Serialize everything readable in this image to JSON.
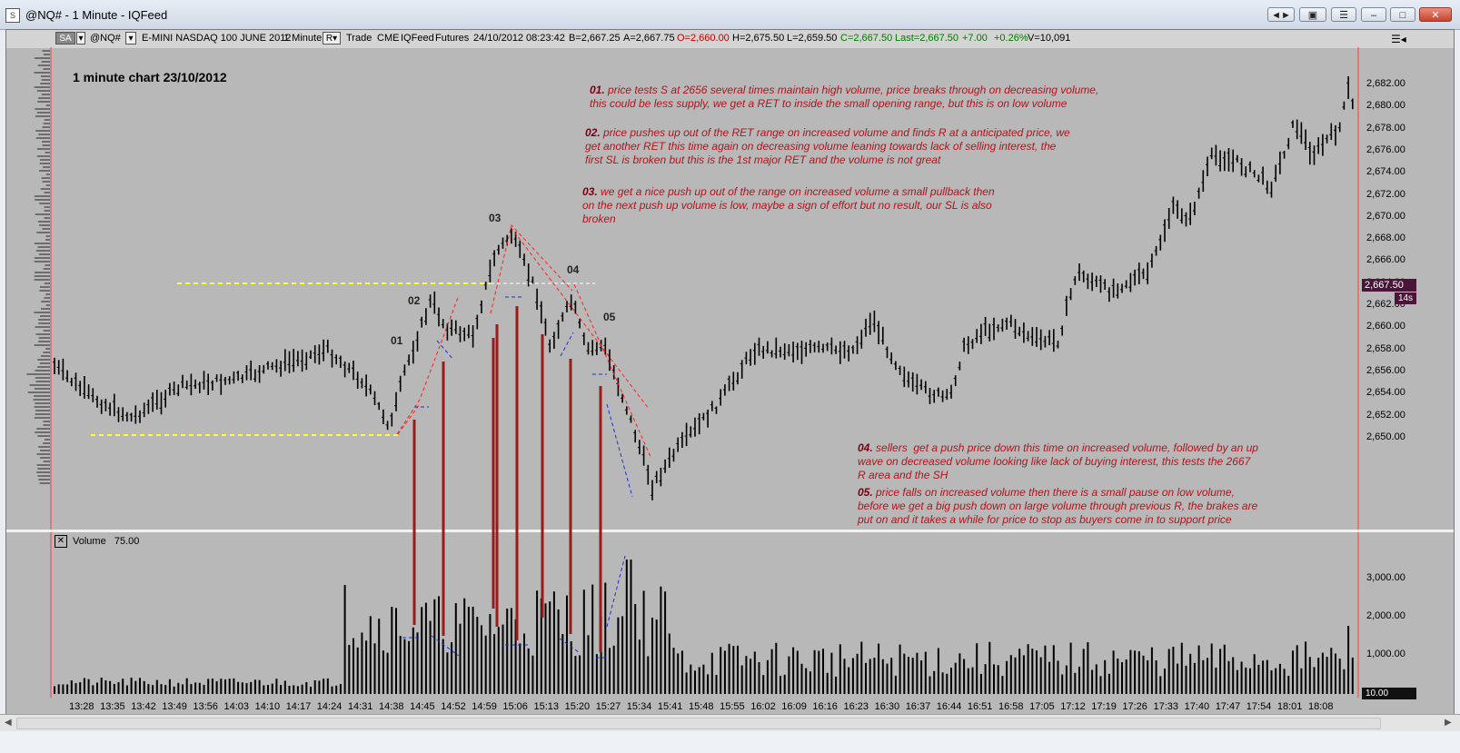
{
  "window": {
    "title": "@NQ# - 1 Minute - IQFeed",
    "controls": [
      "◄►",
      "▣",
      "☰",
      "–",
      "□",
      "✕"
    ]
  },
  "toolbar": {
    "mode": "SA",
    "symbol": "@NQ#",
    "description": "E-MINI NASDAQ 100 JUNE 2012",
    "interval": "1 Minute",
    "r_btn": "R",
    "trade": "Trade",
    "exchange": "CME",
    "feed": "IQFeed",
    "type": "Futures",
    "date": "24/10/2012",
    "time": "08:23:42",
    "bid": "B=2,667.25",
    "ask": "A=2,667.75",
    "open": "O=2,660.00",
    "high": "H=2,675.50",
    "low": "L=2,659.50",
    "close": "C=2,667.50",
    "last": "Last=2,667.50",
    "change": "+7.00",
    "change_pct": "+0.26%",
    "volume": "V=10,091"
  },
  "chart_title": "1 minute chart 23/10/2012",
  "annotations": [
    {
      "num": "01.",
      "text": "price tests S at 2656 several times maintain high volume, price breaks through on decreasing volume,\nthis could be less supply, we get a RET to inside the small opening range, but this is on low volume"
    },
    {
      "num": "02.",
      "text": "price pushes up out of the RET range on increased volume and finds R at a anticipated price, we\nget another RET this time again on decreasing volume leaning towards lack of selling interest, the\nfirst SL is broken but this is the 1st major RET and the volume is not great"
    },
    {
      "num": "03.",
      "text": "we get a nice push up out of the range on increased volume a small pullback then\non the next push up volume is low, maybe a sign of effort but no result, our SL is also\nbroken"
    },
    {
      "num": "04.",
      "text": "sellers  get a push price down this time on increased volume, followed by an up\nwave on decreased volume looking like lack of buying interest, this tests the 2667\nR area and the SH"
    },
    {
      "num": "05.",
      "text": "price falls on increased volume then there is a small pause on low volume,\nbefore we get a big push down on large volume through previous R, the brakes are\nput on and it takes a while for price to stop as buyers come in to support price"
    }
  ],
  "wave_labels": [
    "01",
    "02",
    "03",
    "04",
    "05"
  ],
  "price_axis": [
    "2,682.00",
    "2,680.00",
    "2,678.00",
    "2,676.00",
    "2,674.00",
    "2,672.00",
    "2,670.00",
    "2,668.00",
    "2,666.00",
    "2,664.00",
    "2,662.00",
    "2,660.00",
    "2,658.00",
    "2,656.00",
    "2,654.00",
    "2,652.00",
    "2,650.00"
  ],
  "last_price": "2,667.50",
  "bar_timer": "14s",
  "volume_panel": {
    "label": "Volume",
    "value": "75.00"
  },
  "volume_axis": [
    "3,000.00",
    "2,000.00",
    "1,000.00"
  ],
  "volume_last": "10.00",
  "time_axis": [
    "13:28",
    "13:35",
    "13:42",
    "13:49",
    "13:56",
    "14:03",
    "14:10",
    "14:17",
    "14:24",
    "14:31",
    "14:38",
    "14:45",
    "14:52",
    "14:59",
    "15:06",
    "15:13",
    "15:20",
    "15:27",
    "15:34",
    "15:41",
    "15:48",
    "15:55",
    "16:02",
    "16:09",
    "16:16",
    "16:23",
    "16:30",
    "16:37",
    "16:44",
    "16:51",
    "16:58",
    "17:05",
    "17:12",
    "17:19",
    "17:26",
    "17:33",
    "17:40",
    "17:47",
    "17:54",
    "18:01",
    "18:08"
  ],
  "colors": {
    "background": "#b8b8b8",
    "bars": "#000000",
    "support_line": "#ffff33",
    "trend_lines": "#ff2020",
    "volume_markers": "#a01818",
    "annotation_text": "#b0141c"
  }
}
